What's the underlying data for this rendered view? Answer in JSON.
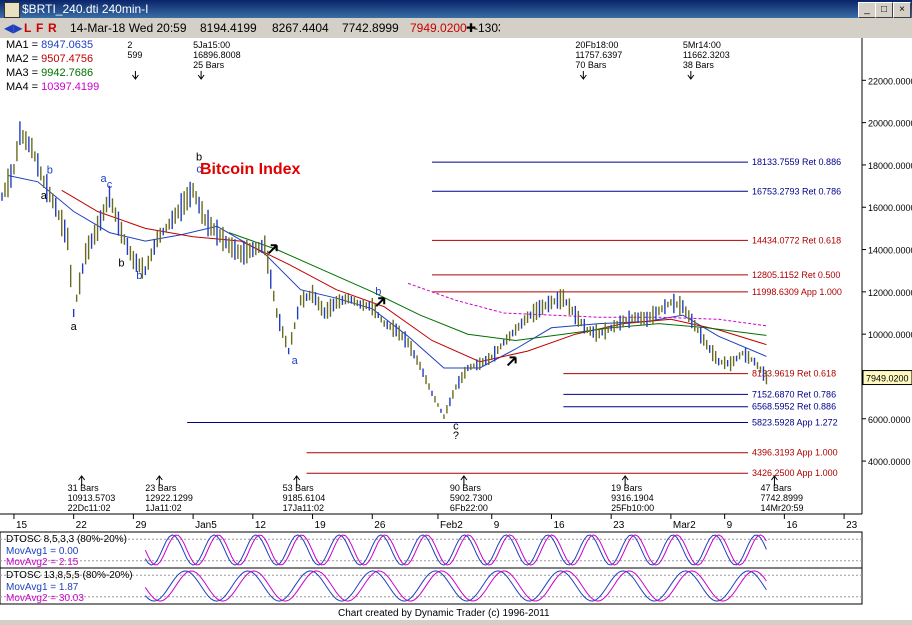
{
  "window": {
    "title": "$BRTI_240.dti 240min-I",
    "min_label": "_",
    "max_label": "□",
    "close_label": "×"
  },
  "toolbar": {
    "buttons": [
      "L",
      "F",
      "R"
    ],
    "date": "14-Mar-18 Wed 20:59",
    "open": "8194.4199",
    "high": "8267.4404",
    "low": "7742.8999",
    "close": "7949.0200",
    "change": "-1303",
    "cross": "✚"
  },
  "moving_averages": [
    {
      "label": "MA1",
      "value": "8947.0635",
      "color": "#1f3fbf"
    },
    {
      "label": "MA2",
      "value": "9507.4756",
      "color": "#c00000"
    },
    {
      "label": "MA3",
      "value": "9942.7686",
      "color": "#007000"
    },
    {
      "label": "MA4",
      "value": "10397.4199",
      "color": "#cc00cc"
    }
  ],
  "chart_data": {
    "type": "line",
    "title": "Bitcoin Index",
    "ylim": [
      3200,
      24000
    ],
    "yticks": [
      "22000.0000",
      "20000.0000",
      "18000.0000",
      "16000.0000",
      "14000.0000",
      "12000.0000",
      "10000.0000",
      "8000.0000",
      "6000.0000",
      "4000.0000"
    ],
    "ytick_values": [
      22000,
      20000,
      18000,
      16000,
      14000,
      12000,
      10000,
      8000,
      6000,
      4000
    ],
    "last_price": "7949.0200",
    "last_value": 7949.02,
    "xticks": [
      "15",
      "22",
      "29",
      "Jan5",
      "12",
      "19",
      "26",
      "Feb2",
      "9",
      "16",
      "23",
      "Mar2",
      "9",
      "16",
      "23"
    ],
    "xtick_index": [
      2,
      12,
      22,
      32,
      42,
      52,
      62,
      73,
      82,
      92,
      102,
      112,
      121,
      131,
      141
    ],
    "price_points": [
      [
        0,
        16500
      ],
      [
        2,
        17800
      ],
      [
        3,
        19500
      ],
      [
        5,
        18800
      ],
      [
        7,
        17200
      ],
      [
        9,
        16000
      ],
      [
        11,
        14500
      ],
      [
        12,
        11000
      ],
      [
        14,
        13800
      ],
      [
        16,
        15000
      ],
      [
        18,
        16500
      ],
      [
        20,
        14800
      ],
      [
        22,
        13500
      ],
      [
        24,
        13000
      ],
      [
        26,
        14500
      ],
      [
        28,
        15200
      ],
      [
        30,
        16000
      ],
      [
        32,
        16800
      ],
      [
        34,
        15400
      ],
      [
        36,
        14800
      ],
      [
        38,
        14200
      ],
      [
        40,
        13800
      ],
      [
        42,
        14000
      ],
      [
        44,
        14200
      ],
      [
        46,
        11000
      ],
      [
        48,
        9200
      ],
      [
        50,
        11600
      ],
      [
        52,
        11900
      ],
      [
        54,
        11000
      ],
      [
        56,
        11500
      ],
      [
        58,
        11700
      ],
      [
        60,
        11400
      ],
      [
        62,
        11300
      ],
      [
        64,
        10500
      ],
      [
        66,
        10200
      ],
      [
        68,
        9600
      ],
      [
        70,
        8500
      ],
      [
        72,
        7200
      ],
      [
        74,
        6100
      ],
      [
        76,
        7500
      ],
      [
        78,
        8400
      ],
      [
        80,
        8600
      ],
      [
        82,
        8900
      ],
      [
        84,
        9600
      ],
      [
        86,
        10200
      ],
      [
        88,
        10800
      ],
      [
        90,
        11200
      ],
      [
        92,
        11500
      ],
      [
        94,
        11700
      ],
      [
        96,
        10900
      ],
      [
        98,
        10200
      ],
      [
        100,
        10000
      ],
      [
        102,
        10300
      ],
      [
        104,
        10600
      ],
      [
        106,
        10800
      ],
      [
        108,
        10700
      ],
      [
        110,
        11100
      ],
      [
        112,
        11500
      ],
      [
        114,
        11300
      ],
      [
        116,
        10400
      ],
      [
        118,
        9500
      ],
      [
        120,
        8700
      ],
      [
        122,
        8600
      ],
      [
        124,
        9100
      ],
      [
        126,
        8700
      ],
      [
        128,
        7949
      ]
    ],
    "ma_series": [
      {
        "color": "#1f3fbf",
        "points": [
          [
            1,
            17500
          ],
          [
            6,
            17200
          ],
          [
            12,
            15800
          ],
          [
            18,
            14800
          ],
          [
            24,
            14400
          ],
          [
            30,
            14700
          ],
          [
            36,
            15100
          ],
          [
            44,
            13800
          ],
          [
            50,
            12100
          ],
          [
            56,
            11700
          ],
          [
            62,
            11200
          ],
          [
            68,
            9900
          ],
          [
            74,
            8400
          ],
          [
            80,
            8400
          ],
          [
            86,
            9300
          ],
          [
            92,
            10300
          ],
          [
            100,
            10500
          ],
          [
            108,
            10600
          ],
          [
            114,
            10900
          ],
          [
            120,
            9900
          ],
          [
            128,
            8947
          ]
        ]
      },
      {
        "color": "#c00000",
        "points": [
          [
            10,
            16800
          ],
          [
            16,
            15800
          ],
          [
            24,
            15000
          ],
          [
            32,
            14600
          ],
          [
            40,
            14400
          ],
          [
            48,
            13300
          ],
          [
            56,
            12100
          ],
          [
            64,
            11300
          ],
          [
            72,
            9700
          ],
          [
            80,
            8700
          ],
          [
            88,
            9200
          ],
          [
            96,
            10000
          ],
          [
            104,
            10500
          ],
          [
            112,
            10700
          ],
          [
            120,
            10200
          ],
          [
            128,
            9507
          ]
        ]
      },
      {
        "color": "#007000",
        "points": [
          [
            38,
            14800
          ],
          [
            46,
            14000
          ],
          [
            54,
            13000
          ],
          [
            62,
            12000
          ],
          [
            70,
            10900
          ],
          [
            78,
            10000
          ],
          [
            86,
            9700
          ],
          [
            94,
            10000
          ],
          [
            102,
            10300
          ],
          [
            110,
            10500
          ],
          [
            118,
            10300
          ],
          [
            128,
            9942
          ]
        ]
      },
      {
        "color": "#cc00cc",
        "points": [
          [
            68,
            12400
          ],
          [
            76,
            11600
          ],
          [
            84,
            11000
          ],
          [
            92,
            10900
          ],
          [
            100,
            10800
          ],
          [
            110,
            10800
          ],
          [
            120,
            10700
          ],
          [
            128,
            10397
          ]
        ]
      }
    ],
    "levels": [
      {
        "label": "18133.7559 Ret 0.886",
        "value": 18133.7559,
        "color": "#00008b",
        "start": 72
      },
      {
        "label": "16753.2793 Ret 0.786",
        "value": 16753.2793,
        "color": "#00008b",
        "start": 72
      },
      {
        "label": "14434.0772 Ret 0.618",
        "value": 14434.0772,
        "color": "#b00000",
        "start": 72
      },
      {
        "label": "12805.1152 Ret 0.500",
        "value": 12805.1152,
        "color": "#b00000",
        "start": 72
      },
      {
        "label": "11998.6309 App 1.000",
        "value": 11998.6309,
        "color": "#b00000",
        "start": 72
      },
      {
        "label": "8133.9619 Ret 0.618",
        "value": 8133.9619,
        "color": "#b00000",
        "start": 94
      },
      {
        "label": "7152.6870 Ret 0.786",
        "value": 7152.687,
        "color": "#00008b",
        "start": 94
      },
      {
        "label": "6568.5952 Ret 0.886",
        "value": 6568.5952,
        "color": "#00008b",
        "start": 94
      },
      {
        "label": "5823.5928 App 1.272",
        "value": 5823.5928,
        "color": "#00008b",
        "start": 31
      },
      {
        "label": "4396.3193 App 1.000",
        "value": 4396.3193,
        "color": "#b00000",
        "start": 51
      },
      {
        "label": "3426.2500 App 1.000",
        "value": 3426.25,
        "color": "#b00000",
        "start": 51
      }
    ],
    "top_annotations": [
      {
        "i": 21,
        "lines": [
          "2",
          "599"
        ]
      },
      {
        "i": 32,
        "lines": [
          "5Ja15:00",
          "16896.8008",
          "25 Bars"
        ]
      },
      {
        "i": 96,
        "lines": [
          "20Fb18:00",
          "11757.6397",
          "70 Bars"
        ]
      },
      {
        "i": 114,
        "lines": [
          "5Mr14:00",
          "11662.3203",
          "38 Bars"
        ]
      }
    ],
    "bottom_annotations": [
      {
        "i": 12,
        "lines": [
          "31 Bars",
          "10913.5703",
          "22Dc11:02"
        ]
      },
      {
        "i": 25,
        "lines": [
          "23 Bars",
          "12922.1299",
          "1Ja11:02"
        ]
      },
      {
        "i": 48,
        "lines": [
          "53 Bars",
          "9185.6104",
          "17Ja11:02"
        ]
      },
      {
        "i": 76,
        "lines": [
          "90 Bars",
          "5902.7300",
          "6Fb22:00"
        ]
      },
      {
        "i": 103,
        "lines": [
          "19 Bars",
          "9316.1904",
          "25Fb10:00"
        ]
      },
      {
        "i": 128,
        "lines": [
          "47 Bars",
          "7742.8999",
          "14Mr20:59"
        ]
      }
    ],
    "wave_labels": [
      {
        "text": "a",
        "i": 7,
        "v": 16400,
        "color": "#000000"
      },
      {
        "text": "b",
        "i": 8,
        "v": 17600,
        "color": "#1f3fbf"
      },
      {
        "text": "a",
        "i": 12,
        "v": 10200,
        "color": "#000000"
      },
      {
        "text": "a",
        "i": 17,
        "v": 17200,
        "color": "#1f3fbf"
      },
      {
        "text": "c",
        "i": 18,
        "v": 16900,
        "color": "#1f3fbf"
      },
      {
        "text": "b",
        "i": 20,
        "v": 13200,
        "color": "#000000"
      },
      {
        "text": "b",
        "i": 23,
        "v": 12600,
        "color": "#1f3fbf"
      },
      {
        "text": "b",
        "i": 33,
        "v": 18200,
        "color": "#000000"
      },
      {
        "text": "c",
        "i": 33,
        "v": 17650,
        "color": "#1f3fbf"
      },
      {
        "text": "b",
        "i": 63,
        "v": 11850,
        "color": "#1f3fbf"
      },
      {
        "text": "a",
        "i": 49,
        "v": 8600,
        "color": "#1f3fbf"
      },
      {
        "text": "c",
        "i": 76,
        "v": 5500,
        "color": "#000000"
      },
      {
        "text": "?",
        "i": 76,
        "v": 5050,
        "color": "#000000"
      }
    ],
    "arrows": [
      {
        "i": 46,
        "v": 14200
      },
      {
        "i": 64,
        "v": 11700
      },
      {
        "i": 86,
        "v": 8900
      }
    ]
  },
  "indicators": [
    {
      "title": "DTOSC 8,5,3,3 (80%-20%)",
      "avg1_label": "MovAvg1 = 0.00",
      "avg2_label": "MovAvg2 = 2.15",
      "seed": 1
    },
    {
      "title": "DTOSC 13,8,5,5 (80%-20%)",
      "avg1_label": "MovAvg1 = 1.87",
      "avg2_label": "MovAvg2 = 30.03",
      "seed": 2
    }
  ],
  "footer": "Chart created by Dynamic Trader  (c) 1996-2011"
}
